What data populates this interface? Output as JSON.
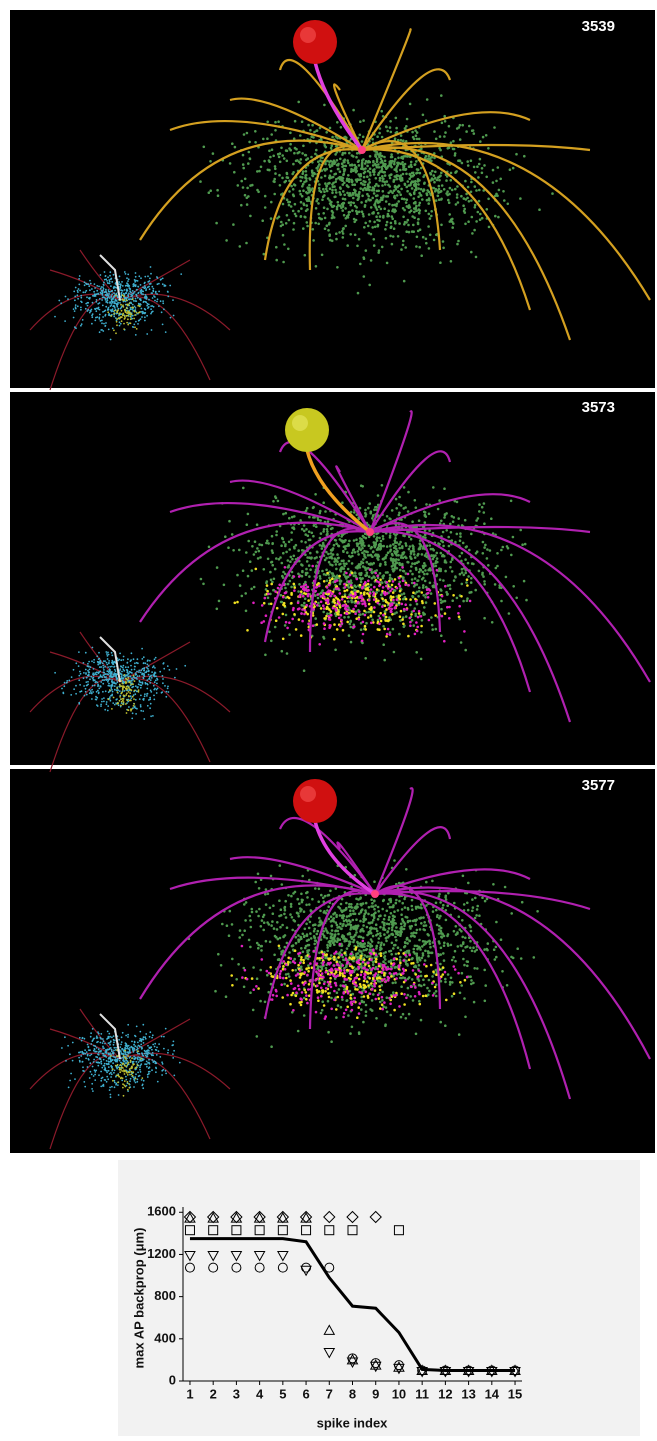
{
  "panels": [
    {
      "label": "3539"
    },
    {
      "label": "3573"
    },
    {
      "label": "3577"
    }
  ],
  "chart_data": {
    "type": "scatter",
    "x_label": "spike index",
    "y_label": "max AP backprop (μm)",
    "x": [
      1,
      2,
      3,
      4,
      5,
      6,
      7,
      8,
      9,
      10,
      11,
      12,
      13,
      14,
      15
    ],
    "xlim": [
      0.7,
      15.3
    ],
    "xticks": [
      1,
      2,
      3,
      4,
      5,
      6,
      7,
      8,
      9,
      10,
      11,
      12,
      13,
      14,
      15
    ],
    "ylim": [
      0,
      1650
    ],
    "yticks": [
      0,
      400,
      800,
      1200,
      1600
    ],
    "series": [
      {
        "marker": "diamond",
        "color": "#000000",
        "values": [
          1555,
          1555,
          1555,
          1555,
          1555,
          1555,
          1555,
          1555,
          1555,
          null,
          null,
          null,
          null,
          null,
          null
        ]
      },
      {
        "marker": "square",
        "color": "#000000",
        "values": [
          1430,
          1430,
          1430,
          1430,
          1430,
          1430,
          1430,
          1430,
          null,
          1430,
          null,
          null,
          null,
          null,
          null
        ]
      },
      {
        "marker": "triangle-up",
        "color": "#000000",
        "values": [
          1545,
          1545,
          1545,
          1545,
          1545,
          1545,
          480,
          200,
          150,
          130,
          100,
          100,
          100,
          100,
          100
        ]
      },
      {
        "marker": "triangle-down",
        "color": "#000000",
        "values": [
          1190,
          1190,
          1190,
          1190,
          1190,
          1050,
          270,
          180,
          140,
          120,
          90,
          90,
          90,
          90,
          90
        ]
      },
      {
        "marker": "circle",
        "color": "#000000",
        "values": [
          1075,
          1075,
          1075,
          1075,
          1075,
          1075,
          1075,
          215,
          170,
          150,
          100,
          100,
          100,
          100,
          100
        ]
      },
      {
        "marker": "line",
        "color": "#000000",
        "values": [
          1350,
          1350,
          1350,
          1350,
          1350,
          1320,
          980,
          710,
          690,
          460,
          110,
          100,
          100,
          100,
          100
        ]
      }
    ]
  }
}
